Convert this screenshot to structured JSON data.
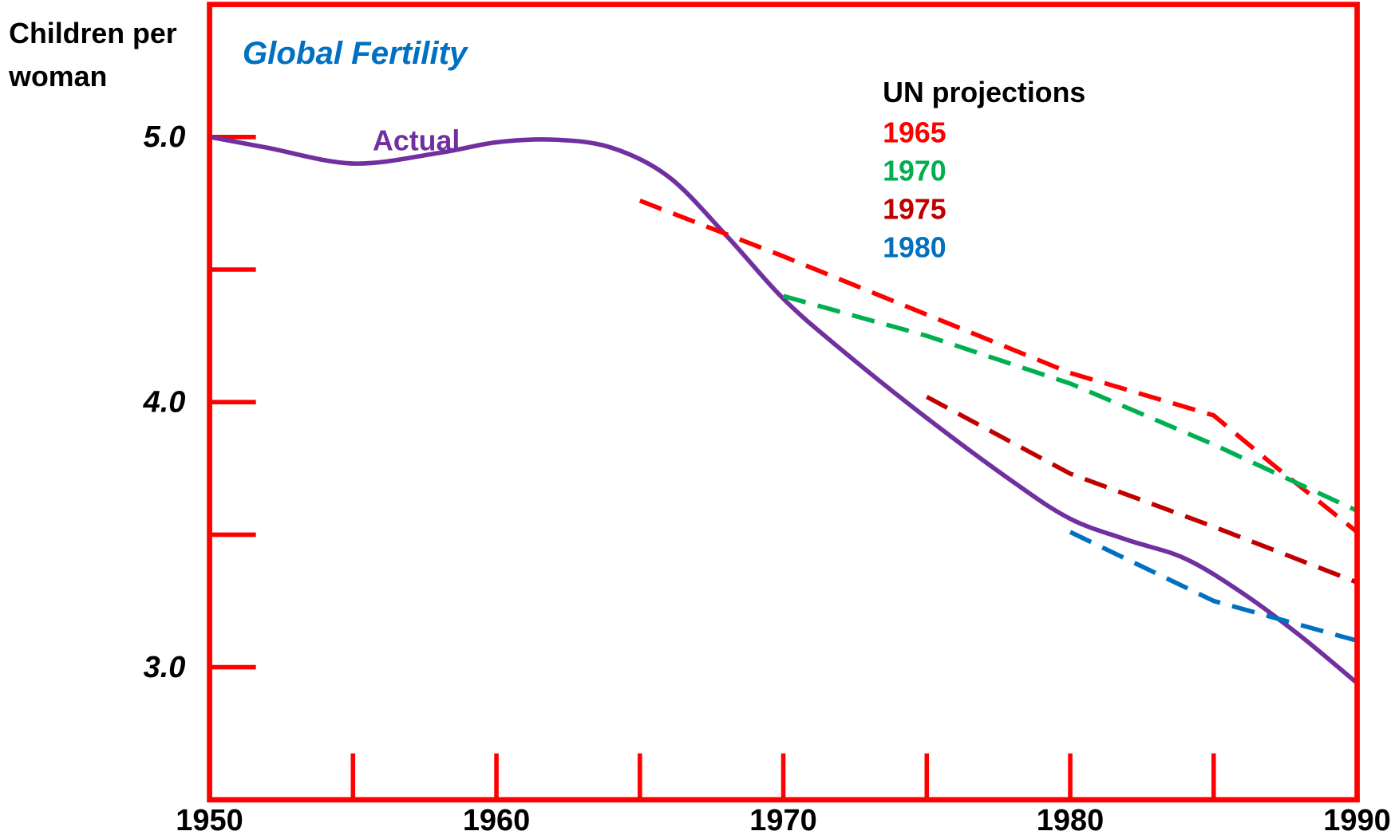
{
  "chart_data": {
    "type": "line",
    "title": "Global Fertility",
    "y_label": [
      "Children per",
      "woman"
    ],
    "legend_title": "UN projections",
    "xlim": [
      1950,
      1990
    ],
    "xticks": [
      1950,
      1960,
      1970,
      1980,
      1990
    ],
    "xticks_minor": [
      1955,
      1965,
      1975,
      1985
    ],
    "ylim": [
      2.5,
      5.5
    ],
    "yticks": [
      {
        "value": 3,
        "label": "3.0"
      },
      {
        "value": 4,
        "label": "4.0"
      },
      {
        "value": 5,
        "label": "5.0"
      }
    ],
    "yticks_minor": [
      3.5,
      4.5
    ],
    "frame_color": "#ff0000",
    "series": [
      {
        "name": "Actual",
        "color": "#7030a0",
        "dashed": false,
        "x": [
          1950,
          1952,
          1955,
          1958,
          1960,
          1962,
          1964,
          1966,
          1968,
          1970,
          1972,
          1975,
          1978,
          1980,
          1982,
          1984,
          1986,
          1988,
          1990
        ],
        "values": [
          5.0,
          4.96,
          4.9,
          4.94,
          4.98,
          4.99,
          4.96,
          4.85,
          4.63,
          4.39,
          4.2,
          3.94,
          3.7,
          3.56,
          3.48,
          3.41,
          3.28,
          3.12,
          2.94
        ]
      },
      {
        "name": "1965",
        "color": "#ff0000",
        "dashed": true,
        "x": [
          1965,
          1970,
          1975,
          1980,
          1985,
          1987,
          1990
        ],
        "values": [
          4.76,
          4.55,
          4.33,
          4.11,
          3.95,
          3.77,
          3.51
        ]
      },
      {
        "name": "1970",
        "color": "#00b050",
        "dashed": true,
        "x": [
          1970,
          1975,
          1980,
          1985,
          1990
        ],
        "values": [
          4.4,
          4.25,
          4.07,
          3.84,
          3.59
        ]
      },
      {
        "name": "1975",
        "color": "#c00000",
        "dashed": true,
        "x": [
          1975,
          1980,
          1985,
          1990
        ],
        "values": [
          4.02,
          3.73,
          3.53,
          3.32
        ]
      },
      {
        "name": "1980",
        "color": "#0070c0",
        "dashed": true,
        "x": [
          1980,
          1985,
          1990
        ],
        "values": [
          3.51,
          3.25,
          3.1
        ]
      }
    ]
  }
}
